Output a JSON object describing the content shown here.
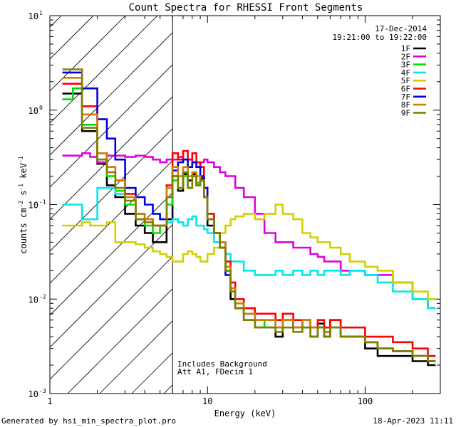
{
  "chart_data": {
    "type": "line",
    "title": "Count Spectra for RHESSI Front Segments",
    "xlabel": "Energy (keV)",
    "ylabel_parts": {
      "pre": "counts cm",
      "exp1": "-2",
      "mid1": " s",
      "exp2": "-1",
      "mid2": " keV",
      "exp3": "-1"
    },
    "xscale": "log",
    "yscale": "log",
    "xlim": [
      1,
      300
    ],
    "ylim": [
      0.001,
      10
    ],
    "x_ticks": [
      {
        "value": 1,
        "label": "1"
      },
      {
        "value": 10,
        "label": "10"
      },
      {
        "value": 100,
        "label": "100"
      }
    ],
    "y_ticks": [
      {
        "value": 0.001,
        "base": "10",
        "exp": "-3"
      },
      {
        "value": 0.01,
        "base": "10",
        "exp": "-2"
      },
      {
        "value": 0.1,
        "base": "10",
        "exp": "-1"
      },
      {
        "value": 1,
        "base": "10",
        "exp": "0"
      },
      {
        "value": 10,
        "base": "10",
        "exp": "1"
      }
    ],
    "date": "17-Dec-2014",
    "time_range": "19:21:00 to 19:22:00",
    "shaded_region": {
      "from_keV": 1,
      "to_keV": 6,
      "style": "diagonal-hatch"
    },
    "annotations": [
      "Includes Background",
      "Att A1, FDecim 1"
    ],
    "footer_left": "Generated by hsi_min_spectra_plot.pro",
    "footer_right": "18-Apr-2023 11:11",
    "bin_edges_keV": [
      1.2,
      1.4,
      1.6,
      1.8,
      2.0,
      2.3,
      2.6,
      3.0,
      3.5,
      4.0,
      4.5,
      5.0,
      5.5,
      6.0,
      6.5,
      7.0,
      7.5,
      8.0,
      8.5,
      9.0,
      9.5,
      10.0,
      11.0,
      12.0,
      13.0,
      14.0,
      15.0,
      17.0,
      20.0,
      23.0,
      27.0,
      30.0,
      35.0,
      40.0,
      45.0,
      50.0,
      55.0,
      60.0,
      70.0,
      80.0,
      100.0,
      120.0,
      150.0,
      200.0,
      250.0,
      280.0
    ],
    "series": [
      {
        "name": "1F",
        "color": "#000000",
        "values": [
          1.5,
          1.5,
          0.6,
          0.6,
          0.27,
          0.16,
          0.12,
          0.08,
          0.06,
          0.05,
          0.04,
          0.04,
          0.07,
          0.2,
          0.14,
          0.21,
          0.18,
          0.21,
          0.16,
          0.19,
          0.12,
          0.06,
          0.05,
          0.035,
          0.02,
          0.01,
          0.008,
          0.006,
          0.005,
          0.005,
          0.004,
          0.006,
          0.005,
          0.005,
          0.004,
          0.0055,
          0.004,
          0.006,
          0.004,
          0.004,
          0.003,
          0.0025,
          0.0025,
          0.0022,
          0.002
        ]
      },
      {
        "name": "2F",
        "color": "#e000e0",
        "values": [
          0.33,
          0.33,
          0.35,
          0.32,
          0.28,
          0.33,
          0.33,
          0.32,
          0.33,
          0.32,
          0.3,
          0.28,
          0.3,
          0.3,
          0.32,
          0.3,
          0.3,
          0.28,
          0.25,
          0.28,
          0.3,
          0.28,
          0.25,
          0.22,
          0.2,
          0.2,
          0.15,
          0.12,
          0.08,
          0.05,
          0.04,
          0.04,
          0.035,
          0.035,
          0.03,
          0.028,
          0.025,
          0.025,
          0.02,
          0.02,
          0.018,
          0.018,
          0.015,
          0.01,
          0.008
        ]
      },
      {
        "name": "3F",
        "color": "#00e000",
        "values": [
          1.3,
          1.7,
          0.7,
          0.7,
          0.3,
          0.2,
          0.14,
          0.1,
          0.07,
          0.06,
          0.05,
          0.06,
          0.1,
          0.18,
          0.15,
          0.2,
          0.15,
          0.2,
          0.17,
          0.18,
          0.12,
          0.07,
          0.05,
          0.04,
          0.02,
          0.012,
          0.009,
          0.007,
          0.006,
          0.005,
          0.005,
          0.006,
          0.005,
          0.006,
          0.005,
          0.005,
          0.0045,
          0.005,
          0.004,
          0.004,
          0.0035,
          0.003,
          0.0028,
          0.0025,
          0.0022
        ]
      },
      {
        "name": "4F",
        "color": "#00e8e8",
        "values": [
          0.1,
          0.1,
          0.07,
          0.07,
          0.15,
          0.15,
          0.13,
          0.12,
          0.08,
          0.07,
          0.06,
          0.06,
          0.065,
          0.07,
          0.065,
          0.06,
          0.07,
          0.075,
          0.06,
          0.06,
          0.055,
          0.05,
          0.04,
          0.04,
          0.03,
          0.025,
          0.025,
          0.02,
          0.018,
          0.018,
          0.02,
          0.018,
          0.02,
          0.018,
          0.02,
          0.018,
          0.02,
          0.02,
          0.018,
          0.02,
          0.018,
          0.015,
          0.012,
          0.01,
          0.008
        ]
      },
      {
        "name": "5F",
        "color": "#d0d000",
        "values": [
          0.06,
          0.06,
          0.065,
          0.06,
          0.06,
          0.065,
          0.04,
          0.04,
          0.038,
          0.035,
          0.032,
          0.03,
          0.028,
          0.025,
          0.025,
          0.03,
          0.032,
          0.03,
          0.028,
          0.025,
          0.025,
          0.03,
          0.035,
          0.05,
          0.06,
          0.07,
          0.075,
          0.08,
          0.07,
          0.08,
          0.1,
          0.08,
          0.07,
          0.05,
          0.045,
          0.04,
          0.04,
          0.035,
          0.03,
          0.025,
          0.022,
          0.02,
          0.015,
          0.012,
          0.01
        ]
      },
      {
        "name": "6F",
        "color": "#ff0000",
        "values": [
          1.9,
          1.9,
          1.1,
          1.1,
          0.35,
          0.25,
          0.18,
          0.13,
          0.08,
          0.07,
          0.06,
          0.06,
          0.16,
          0.35,
          0.3,
          0.37,
          0.3,
          0.35,
          0.28,
          0.25,
          0.15,
          0.08,
          0.05,
          0.04,
          0.025,
          0.015,
          0.01,
          0.008,
          0.007,
          0.007,
          0.006,
          0.007,
          0.006,
          0.006,
          0.005,
          0.006,
          0.005,
          0.006,
          0.005,
          0.005,
          0.004,
          0.004,
          0.0035,
          0.003,
          0.0025
        ]
      },
      {
        "name": "7F",
        "color": "#0000e0",
        "values": [
          2.5,
          2.5,
          1.7,
          1.7,
          0.8,
          0.5,
          0.3,
          0.15,
          0.12,
          0.1,
          0.08,
          0.07,
          0.12,
          0.23,
          0.28,
          0.3,
          0.25,
          0.28,
          0.25,
          0.2,
          0.15,
          0.07,
          0.05,
          0.035,
          0.018,
          0.012,
          0.008,
          0.007,
          0.006,
          0.006,
          0.005,
          0.006,
          0.005,
          0.006,
          0.005,
          0.005,
          0.0045,
          0.005,
          0.004,
          0.004,
          0.0035,
          0.003,
          0.0028,
          0.0025,
          0.0022
        ]
      },
      {
        "name": "8F",
        "color": "#d08000",
        "values": [
          2.2,
          2.2,
          0.9,
          0.9,
          0.35,
          0.25,
          0.18,
          0.12,
          0.08,
          0.07,
          0.06,
          0.06,
          0.15,
          0.25,
          0.2,
          0.25,
          0.2,
          0.22,
          0.2,
          0.18,
          0.12,
          0.07,
          0.05,
          0.04,
          0.022,
          0.013,
          0.009,
          0.007,
          0.006,
          0.006,
          0.005,
          0.006,
          0.005,
          0.006,
          0.005,
          0.005,
          0.0045,
          0.005,
          0.004,
          0.004,
          0.0035,
          0.003,
          0.0028,
          0.0025,
          0.0022
        ]
      },
      {
        "name": "9F",
        "color": "#808000",
        "values": [
          2.7,
          2.7,
          0.65,
          0.65,
          0.3,
          0.22,
          0.15,
          0.11,
          0.07,
          0.065,
          0.06,
          0.06,
          0.12,
          0.2,
          0.15,
          0.22,
          0.15,
          0.2,
          0.16,
          0.18,
          0.12,
          0.07,
          0.05,
          0.035,
          0.02,
          0.012,
          0.008,
          0.006,
          0.005,
          0.005,
          0.0045,
          0.005,
          0.0045,
          0.005,
          0.004,
          0.005,
          0.004,
          0.005,
          0.004,
          0.004,
          0.0035,
          0.003,
          0.0028,
          0.0025,
          0.0022
        ]
      }
    ]
  }
}
